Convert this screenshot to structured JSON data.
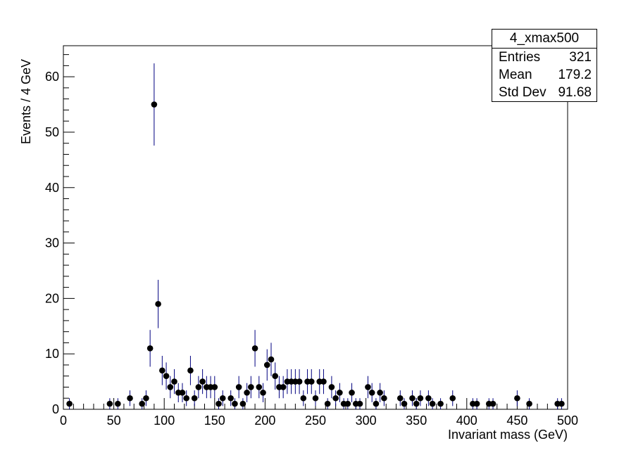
{
  "chart_data": {
    "type": "scatter",
    "style": "histogram-points-with-error-bars",
    "xlabel": "Invariant mass (GeV)",
    "ylabel": "Events / 4 GeV",
    "xlim": [
      0,
      500
    ],
    "ylim": [
      0,
      65.6
    ],
    "x_ticks": [
      "0",
      "50",
      "100",
      "150",
      "200",
      "250",
      "300",
      "350",
      "400",
      "450",
      "500"
    ],
    "y_ticks": [
      "0",
      "10",
      "20",
      "30",
      "40",
      "50",
      "60"
    ],
    "grid": false,
    "bin_width": 4,
    "marker_color": "#000000",
    "error_color": "#000080",
    "points": [
      [
        6,
        1
      ],
      [
        46,
        1
      ],
      [
        54,
        1
      ],
      [
        66,
        2
      ],
      [
        78,
        1
      ],
      [
        82,
        2
      ],
      [
        86,
        11
      ],
      [
        90,
        55
      ],
      [
        94,
        19
      ],
      [
        98,
        7
      ],
      [
        102,
        6
      ],
      [
        106,
        4
      ],
      [
        110,
        5
      ],
      [
        114,
        3
      ],
      [
        118,
        3
      ],
      [
        122,
        2
      ],
      [
        126,
        7
      ],
      [
        130,
        2
      ],
      [
        134,
        4
      ],
      [
        138,
        5
      ],
      [
        142,
        4
      ],
      [
        146,
        4
      ],
      [
        150,
        4
      ],
      [
        154,
        1
      ],
      [
        158,
        2
      ],
      [
        166,
        2
      ],
      [
        170,
        1
      ],
      [
        174,
        4
      ],
      [
        178,
        1
      ],
      [
        182,
        3
      ],
      [
        186,
        4
      ],
      [
        190,
        11
      ],
      [
        194,
        4
      ],
      [
        198,
        3
      ],
      [
        202,
        8
      ],
      [
        206,
        9
      ],
      [
        210,
        6
      ],
      [
        214,
        4
      ],
      [
        218,
        4
      ],
      [
        222,
        5
      ],
      [
        226,
        5
      ],
      [
        230,
        5
      ],
      [
        234,
        5
      ],
      [
        238,
        2
      ],
      [
        242,
        5
      ],
      [
        246,
        5
      ],
      [
        250,
        2
      ],
      [
        254,
        5
      ],
      [
        258,
        5
      ],
      [
        262,
        1
      ],
      [
        266,
        4
      ],
      [
        270,
        2
      ],
      [
        274,
        3
      ],
      [
        278,
        1
      ],
      [
        282,
        1
      ],
      [
        286,
        3
      ],
      [
        290,
        1
      ],
      [
        294,
        1
      ],
      [
        302,
        4
      ],
      [
        306,
        3
      ],
      [
        310,
        1
      ],
      [
        314,
        3
      ],
      [
        318,
        2
      ],
      [
        334,
        2
      ],
      [
        338,
        1
      ],
      [
        346,
        2
      ],
      [
        350,
        1
      ],
      [
        354,
        2
      ],
      [
        362,
        2
      ],
      [
        366,
        1
      ],
      [
        374,
        1
      ],
      [
        386,
        2
      ],
      [
        406,
        1
      ],
      [
        410,
        1
      ],
      [
        422,
        1
      ],
      [
        426,
        1
      ],
      [
        450,
        2
      ],
      [
        462,
        1
      ],
      [
        490,
        1
      ],
      [
        494,
        1
      ]
    ]
  },
  "stats_box": {
    "title": "4_xmax500",
    "entries_label": "Entries",
    "entries_value": "321",
    "mean_label": "Mean",
    "mean_value": "179.2",
    "stddev_label": "Std Dev",
    "stddev_value": "91.68"
  }
}
